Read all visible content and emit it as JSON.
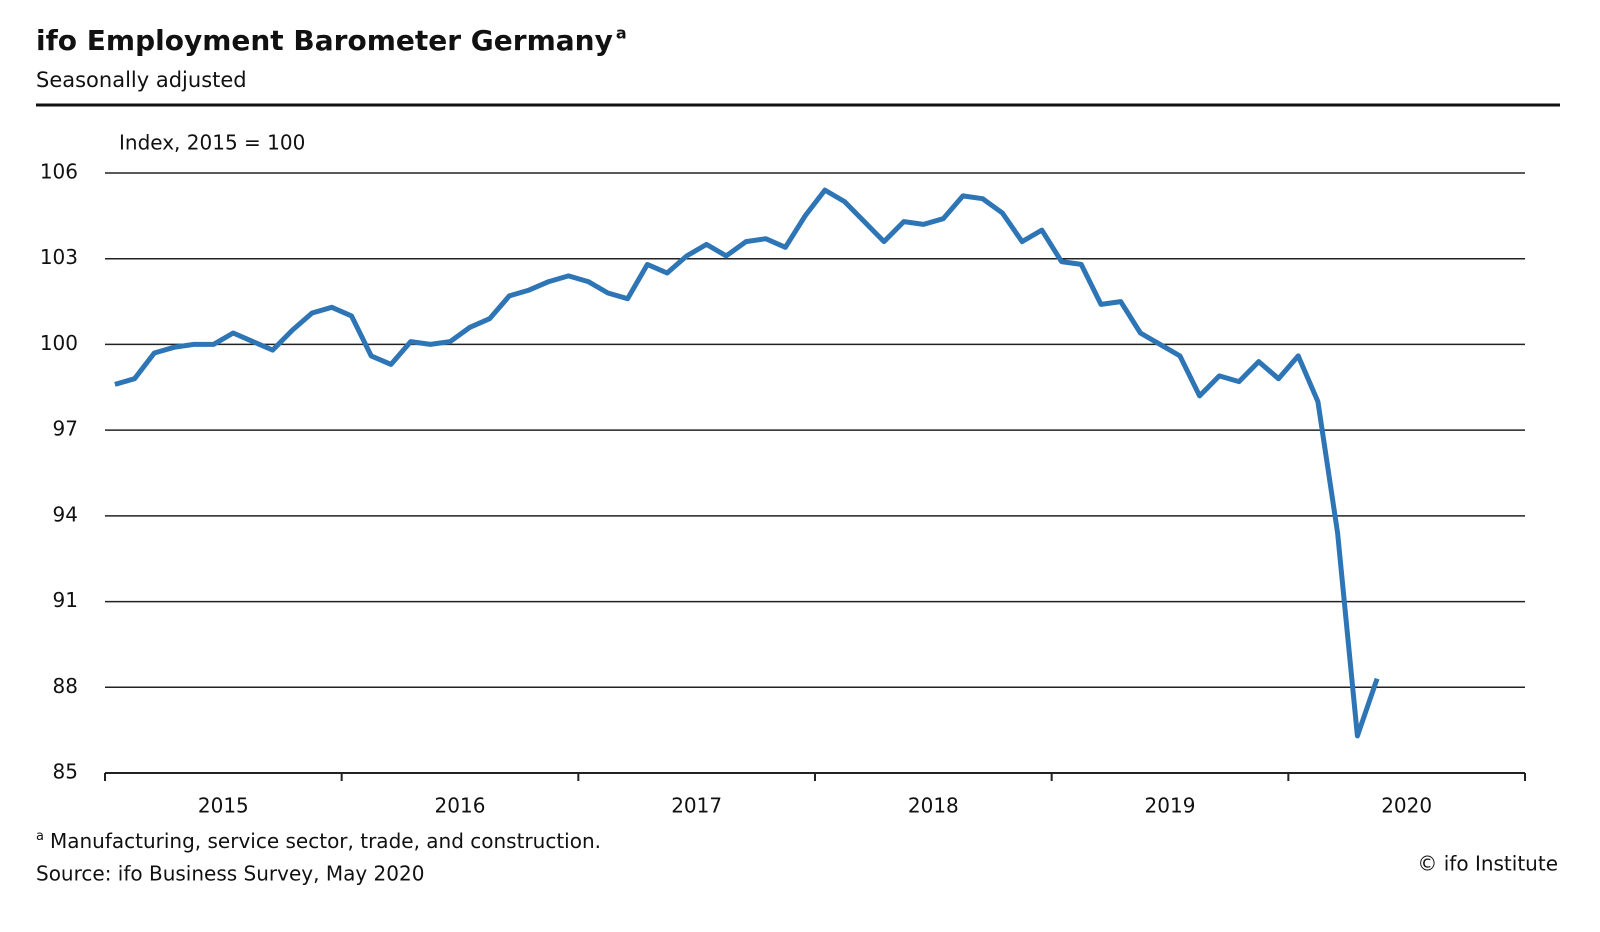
{
  "chart_data": {
    "type": "line",
    "title": "ifo Employment Barometer Germany",
    "subtitle": "Seasonally adjusted",
    "y_label": "Index, 2015 = 100",
    "footnote": {
      "marker": "a",
      "text": "Manufacturing, service sector, trade, and construction."
    },
    "source": "Source: ifo Business Survey, May 2020",
    "credit": "© ifo Institute",
    "categories": [
      "2015",
      "2016",
      "2017",
      "2018",
      "2019",
      "2020"
    ],
    "color": "#2e75b6",
    "values": [
      [
        98.6,
        98.8,
        99.7,
        99.9,
        100.0,
        100.0,
        100.4,
        100.1,
        99.8,
        100.5,
        101.1,
        101.3
      ],
      [
        101.0,
        99.6,
        99.3,
        100.1,
        100.0,
        100.1,
        100.6,
        100.9,
        101.7,
        101.9,
        102.2,
        102.4
      ],
      [
        102.2,
        101.8,
        101.6,
        102.8,
        102.5,
        103.1,
        103.5,
        103.1,
        103.6,
        103.7,
        103.4,
        104.5
      ],
      [
        105.4,
        105.0,
        104.3,
        103.6,
        104.3,
        104.2,
        104.4,
        105.2,
        105.1,
        104.6,
        103.6,
        104.0
      ],
      [
        102.9,
        102.8,
        101.4,
        101.5,
        100.4,
        100.0,
        99.6,
        98.2,
        98.9,
        98.7,
        99.4,
        98.8
      ],
      [
        99.6,
        98.0,
        93.4,
        86.3,
        88.3
      ]
    ],
    "ylim": [
      85,
      106
    ],
    "yticks": [
      85,
      88,
      91,
      94,
      97,
      100,
      103,
      106
    ],
    "grid": true
  }
}
